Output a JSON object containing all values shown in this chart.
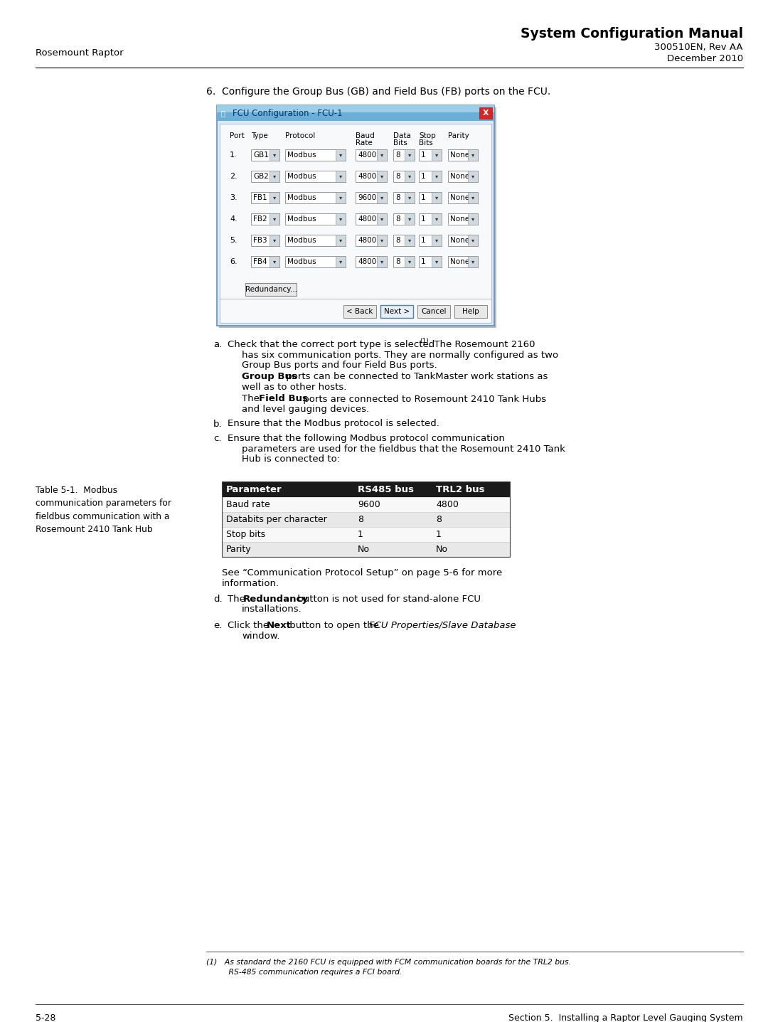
{
  "title_bold": "System Configuration Manual",
  "title_sub1": "300510EN, Rev AA",
  "title_sub2": "December 2010",
  "left_header": "Rosemount Raptor",
  "step_text": "6.  Configure the Group Bus (GB) and Field Bus (FB) ports on the FCU.",
  "dialog_title": "FCU Configuration - FCU-1",
  "dialog_headers_row1": [
    "Port",
    "Type",
    "Protocol",
    "Baud",
    "Data",
    "Stop",
    "Parity"
  ],
  "dialog_headers_row2": [
    "",
    "",
    "",
    "Rate",
    "Bits",
    "Bits",
    ""
  ],
  "dialog_rows": [
    [
      "1.",
      "GB1",
      "Modbus",
      "4800",
      "8",
      "1",
      "None"
    ],
    [
      "2.",
      "GB2",
      "Modbus",
      "4800",
      "8",
      "1",
      "None"
    ],
    [
      "3.",
      "FB1",
      "Modbus",
      "9600",
      "8",
      "1",
      "None"
    ],
    [
      "4.",
      "FB2",
      "Modbus",
      "4800",
      "8",
      "1",
      "None"
    ],
    [
      "5.",
      "FB3",
      "Modbus",
      "4800",
      "8",
      "1",
      "None"
    ],
    [
      "6.",
      "FB4",
      "Modbus",
      "4800",
      "8",
      "1",
      "None"
    ]
  ],
  "redundancy_btn": "Redundancy...",
  "nav_buttons": [
    "< Back",
    "Next >",
    "Cancel",
    "Help"
  ],
  "table_caption_left": "Table 5-1.  Modbus\ncommunication parameters for\nfieldbus communication with a\nRosemount 2410 Tank Hub",
  "table_headers": [
    "Parameter",
    "RS485 bus",
    "TRL2 bus"
  ],
  "table_rows": [
    [
      "Baud rate",
      "9600",
      "4800"
    ],
    [
      "Databits per character",
      "8",
      "8"
    ],
    [
      "Stop bits",
      "1",
      "1"
    ],
    [
      "Parity",
      "No",
      "No"
    ]
  ],
  "footnote_line1": "(1)   As standard the 2160 FCU is equipped with FCM communication boards for the TRL2 bus.",
  "footnote_line2": "         RS-485 communication requires a FCI board.",
  "footer_left": "5-28",
  "footer_right": "Section 5.  Installing a Raptor Level Gauging System",
  "bg_color": "#ffffff",
  "dialog_titlebar": "#c4d8ec",
  "dialog_bg": "#f4f4f4",
  "dialog_inner": "#f8f8f8",
  "table_header_bg": "#1a1a1a",
  "table_row_alt": "#e8e8e8",
  "table_row_norm": "#f8f8f8"
}
